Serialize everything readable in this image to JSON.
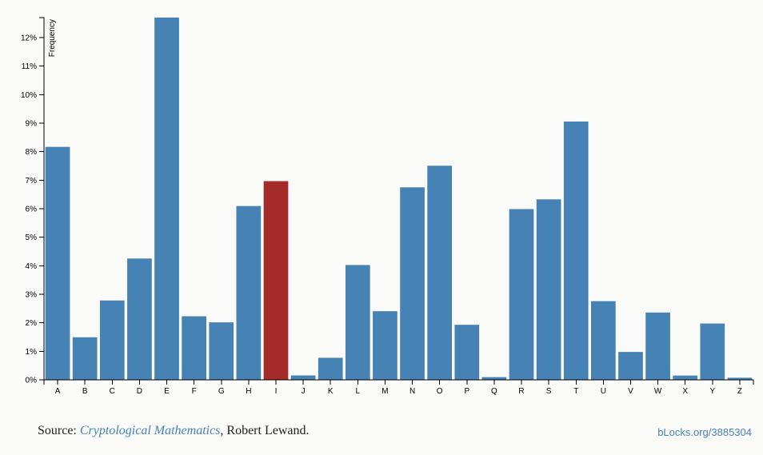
{
  "chart_data": {
    "type": "bar",
    "categories": [
      "A",
      "B",
      "C",
      "D",
      "E",
      "F",
      "G",
      "H",
      "I",
      "J",
      "K",
      "L",
      "M",
      "N",
      "O",
      "P",
      "Q",
      "R",
      "S",
      "T",
      "U",
      "V",
      "W",
      "X",
      "Y",
      "Z"
    ],
    "values": [
      8.167,
      1.492,
      2.782,
      4.253,
      12.702,
      2.228,
      2.015,
      6.094,
      6.966,
      0.153,
      0.772,
      4.025,
      2.406,
      6.749,
      7.507,
      1.929,
      0.095,
      5.987,
      6.327,
      9.056,
      2.758,
      0.978,
      2.36,
      0.15,
      1.974,
      0.074
    ],
    "highlight_category": "I",
    "ylabel": "Frequency",
    "ylim": [
      0,
      12.7
    ],
    "yticks": [
      0,
      1,
      2,
      3,
      4,
      5,
      6,
      7,
      8,
      9,
      10,
      11,
      12
    ],
    "ytick_format": "%",
    "colors": {
      "bar": "#4682b4",
      "highlight": "#a52a2a"
    },
    "grid": false,
    "legend": "none"
  },
  "footer": {
    "source_prefix": "Source: ",
    "source_link_text": "Cryptological Mathematics",
    "source_suffix": ", Robert Lewand.",
    "blocks_link_text": "bLocks.org/3885304"
  }
}
